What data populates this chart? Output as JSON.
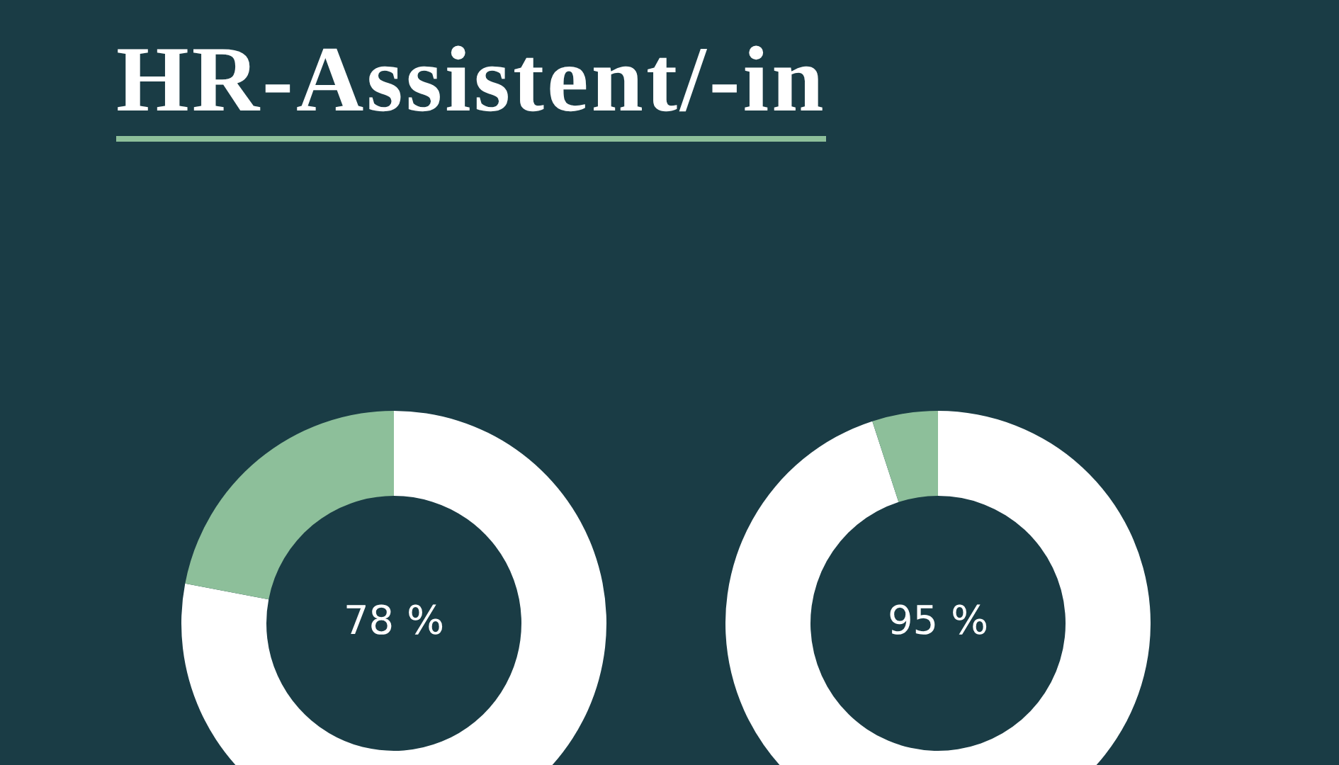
{
  "chart_data": [
    {
      "type": "donut",
      "title": "HR-Assistent/-in",
      "categories": [
        null,
        null
      ],
      "values": [
        78,
        22
      ],
      "colors": [
        "#ffffff",
        "#8dbf9a"
      ],
      "value_labels": [
        "78 %",
        null
      ],
      "legend": false
    },
    {
      "type": "donut",
      "categories": [
        null,
        null
      ],
      "values": [
        95,
        5
      ],
      "colors": [
        "#ffffff",
        "#8dbf9a"
      ],
      "value_labels": [
        "95 %",
        null
      ],
      "legend": false
    }
  ]
}
